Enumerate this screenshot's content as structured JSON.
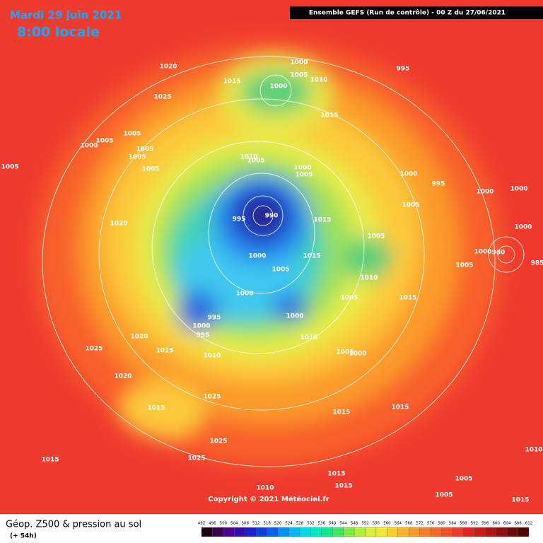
{
  "header": {
    "date": "Mardi 29 juin 2021",
    "time": "8:00 locale",
    "run": "Ensemble GEFS  (Run de contrôle)  -  00 Z du 27/06/2021"
  },
  "copyright": "Copyright © 2021 Météociel.fr",
  "footer": {
    "title": "Géop. Z500 & pression au sol",
    "lead": "(+ 54h)"
  },
  "legend": {
    "values": [
      492,
      496,
      500,
      504,
      508,
      512,
      516,
      520,
      524,
      528,
      532,
      536,
      540,
      544,
      548,
      552,
      556,
      560,
      564,
      568,
      572,
      576,
      580,
      584,
      588,
      592,
      596,
      600,
      604,
      608,
      612
    ]
  },
  "isobar_labels": [
    1020,
    1015,
    1025,
    1000,
    1005,
    1010,
    1000,
    995,
    1015,
    1005,
    1005,
    1000,
    1005,
    1005,
    1005,
    1005,
    1010,
    1005,
    1000,
    1005,
    1000,
    995,
    1000,
    1000,
    1005,
    990,
    995,
    1015,
    1020,
    1000,
    1005,
    1000,
    980,
    985,
    1000,
    1015,
    1005,
    1005,
    1010,
    1000,
    1005,
    1015,
    995,
    1000,
    1000,
    995,
    1020,
    1010,
    1025,
    1015,
    1010,
    1005,
    1000,
    1020,
    1025,
    1015,
    1015,
    1015,
    1025,
    1010,
    1025,
    1015,
    1015,
    1015,
    1005,
    1010,
    1005,
    1015
  ]
}
